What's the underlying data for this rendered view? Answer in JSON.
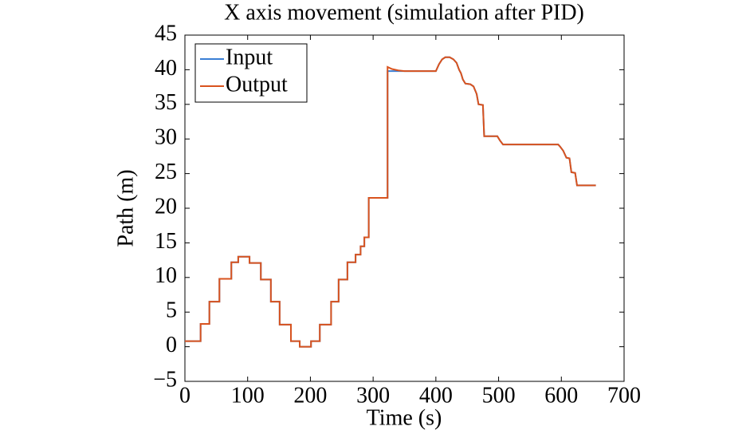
{
  "chart_data": {
    "type": "line",
    "title": "X axis movement (simulation after PID)",
    "xlabel": "Time (s)",
    "ylabel": "Path (m)",
    "x": [
      0,
      25,
      25,
      39,
      39,
      55,
      55,
      74,
      74,
      85,
      85,
      103,
      103,
      121,
      121,
      137,
      137,
      151,
      151,
      169,
      169,
      183,
      183,
      201,
      201,
      215,
      215,
      233,
      233,
      245,
      245,
      259,
      259,
      272,
      272,
      280,
      280,
      286,
      286,
      293,
      293,
      323,
      323,
      330,
      340,
      350,
      400,
      405,
      410,
      415,
      422,
      428,
      433,
      437,
      440,
      443,
      447,
      455,
      460,
      465,
      468,
      475,
      477,
      498,
      502,
      507,
      595,
      598,
      603,
      608,
      613,
      616,
      622,
      625,
      655
    ],
    "series": [
      {
        "name": "Input",
        "color": "#3a7fd5",
        "values": [
          0.8,
          0.8,
          3.3,
          3.3,
          6.5,
          6.5,
          9.8,
          9.8,
          12.2,
          12.2,
          13.0,
          13.0,
          12.1,
          12.1,
          9.7,
          9.7,
          6.5,
          6.5,
          3.2,
          3.2,
          0.8,
          0.8,
          0,
          0,
          0.8,
          0.8,
          3.2,
          3.2,
          6.5,
          6.5,
          9.7,
          9.7,
          12.2,
          12.2,
          13.3,
          13.3,
          14.5,
          14.5,
          15.8,
          15.8,
          21.5,
          21.5,
          39.8,
          39.8,
          39.8,
          39.8,
          39.8,
          40.8,
          41.5,
          41.8,
          41.8,
          41.5,
          41.0,
          40.0,
          39.5,
          38.6,
          38.0,
          37.9,
          37.6,
          36.5,
          35.0,
          34.9,
          30.4,
          30.4,
          29.8,
          29.2,
          29.2,
          28.9,
          28.3,
          27.3,
          27.2,
          25.2,
          25.1,
          23.3,
          23.3
        ]
      },
      {
        "name": "Output",
        "color": "#d9531e",
        "values": [
          0.8,
          0.8,
          3.3,
          3.3,
          6.5,
          6.5,
          9.8,
          9.8,
          12.2,
          12.2,
          13.0,
          13.0,
          12.1,
          12.1,
          9.7,
          9.7,
          6.5,
          6.5,
          3.2,
          3.2,
          0.8,
          0.8,
          0,
          0,
          0.8,
          0.8,
          3.2,
          3.2,
          6.5,
          6.5,
          9.7,
          9.7,
          12.2,
          12.2,
          13.3,
          13.3,
          14.5,
          14.5,
          15.8,
          15.8,
          21.5,
          21.5,
          40.4,
          40.1,
          39.9,
          39.8,
          39.8,
          40.8,
          41.5,
          41.8,
          41.8,
          41.5,
          41.0,
          40.0,
          39.5,
          38.6,
          38.0,
          37.9,
          37.6,
          36.5,
          35.0,
          34.9,
          30.4,
          30.4,
          29.8,
          29.2,
          29.2,
          28.9,
          28.3,
          27.3,
          27.2,
          25.2,
          25.1,
          23.3,
          23.3
        ]
      }
    ],
    "xlim": [
      0,
      700
    ],
    "xticks": [
      0,
      100,
      200,
      300,
      400,
      500,
      600,
      700
    ],
    "ylim": [
      -5,
      45
    ],
    "yticks": [
      {
        "value": -5,
        "label": "−5"
      },
      0,
      5,
      10,
      15,
      20,
      25,
      30,
      35,
      40,
      45
    ],
    "legend": "upper left",
    "grid": false
  }
}
